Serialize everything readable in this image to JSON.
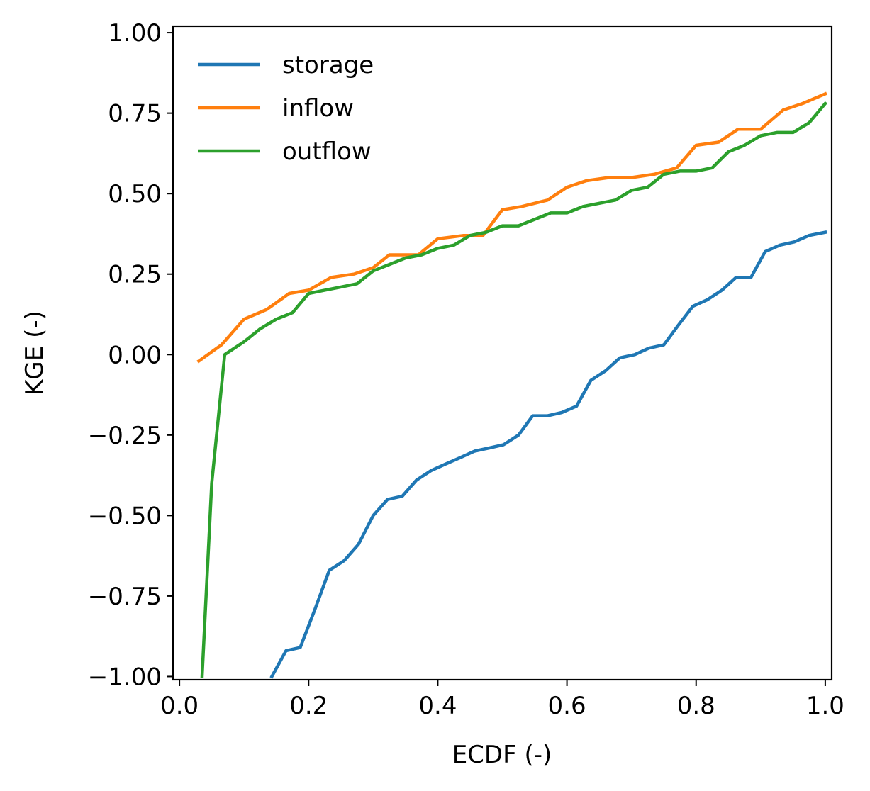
{
  "chart_data": {
    "type": "line",
    "title": "",
    "xlabel": "ECDF (-)",
    "ylabel": "KGE (-)",
    "xlim": [
      -0.01,
      1.01
    ],
    "ylim": [
      -1.01,
      1.02
    ],
    "xticks": [
      0.0,
      0.2,
      0.4,
      0.6,
      0.8,
      1.0
    ],
    "xtick_labels": [
      "0.0",
      "0.2",
      "0.4",
      "0.6",
      "0.8",
      "1.0"
    ],
    "yticks": [
      1.0,
      0.75,
      0.5,
      0.25,
      0.0,
      -0.25,
      -0.5,
      -0.75,
      -1.0
    ],
    "ytick_labels": [
      "1.00",
      "0.75",
      "0.50",
      "0.25",
      "0.00",
      "−0.25",
      "−0.50",
      "−0.75",
      "−1.00"
    ],
    "grid": false,
    "legend_position": "top-left",
    "series": [
      {
        "name": "storage",
        "color": "#1f77b4",
        "x": [
          0.143,
          0.165,
          0.187,
          0.21,
          0.232,
          0.255,
          0.277,
          0.3,
          0.322,
          0.345,
          0.367,
          0.39,
          0.412,
          0.435,
          0.457,
          0.48,
          0.502,
          0.525,
          0.547,
          0.57,
          0.592,
          0.615,
          0.637,
          0.66,
          0.682,
          0.705,
          0.727,
          0.75,
          0.772,
          0.795,
          0.817,
          0.84,
          0.862,
          0.885,
          0.907,
          0.93,
          0.952,
          0.975,
          1.0
        ],
        "y": [
          -1.0,
          -0.92,
          -0.91,
          -0.79,
          -0.67,
          -0.64,
          -0.59,
          -0.5,
          -0.45,
          -0.44,
          -0.39,
          -0.36,
          -0.34,
          -0.32,
          -0.3,
          -0.29,
          -0.28,
          -0.25,
          -0.19,
          -0.19,
          -0.18,
          -0.16,
          -0.08,
          -0.05,
          -0.01,
          0.0,
          0.02,
          0.03,
          0.09,
          0.15,
          0.17,
          0.2,
          0.24,
          0.24,
          0.32,
          0.34,
          0.35,
          0.37,
          0.38
        ]
      },
      {
        "name": "inflow",
        "color": "#ff7f0e",
        "x": [
          0.03,
          0.065,
          0.1,
          0.135,
          0.17,
          0.2,
          0.235,
          0.27,
          0.3,
          0.325,
          0.37,
          0.4,
          0.44,
          0.47,
          0.5,
          0.53,
          0.57,
          0.6,
          0.63,
          0.665,
          0.7,
          0.735,
          0.77,
          0.8,
          0.835,
          0.865,
          0.9,
          0.935,
          0.965,
          1.0
        ],
        "y": [
          -0.02,
          0.03,
          0.11,
          0.14,
          0.19,
          0.2,
          0.24,
          0.25,
          0.27,
          0.31,
          0.31,
          0.36,
          0.37,
          0.37,
          0.45,
          0.46,
          0.48,
          0.52,
          0.54,
          0.55,
          0.55,
          0.56,
          0.58,
          0.65,
          0.66,
          0.7,
          0.7,
          0.76,
          0.78,
          0.81
        ]
      },
      {
        "name": "outflow",
        "color": "#2ca02c",
        "x": [
          0.035,
          0.05,
          0.07,
          0.1,
          0.125,
          0.15,
          0.175,
          0.2,
          0.225,
          0.25,
          0.275,
          0.3,
          0.325,
          0.35,
          0.375,
          0.4,
          0.425,
          0.45,
          0.475,
          0.5,
          0.525,
          0.55,
          0.575,
          0.6,
          0.625,
          0.65,
          0.675,
          0.7,
          0.725,
          0.75,
          0.775,
          0.8,
          0.825,
          0.85,
          0.875,
          0.9,
          0.925,
          0.95,
          0.975,
          1.0
        ],
        "y": [
          -1.0,
          -0.4,
          0.0,
          0.04,
          0.08,
          0.11,
          0.13,
          0.19,
          0.2,
          0.21,
          0.22,
          0.26,
          0.28,
          0.3,
          0.31,
          0.33,
          0.34,
          0.37,
          0.38,
          0.4,
          0.4,
          0.42,
          0.44,
          0.44,
          0.46,
          0.47,
          0.48,
          0.51,
          0.52,
          0.56,
          0.57,
          0.57,
          0.58,
          0.63,
          0.65,
          0.68,
          0.69,
          0.69,
          0.72,
          0.78
        ]
      }
    ]
  }
}
